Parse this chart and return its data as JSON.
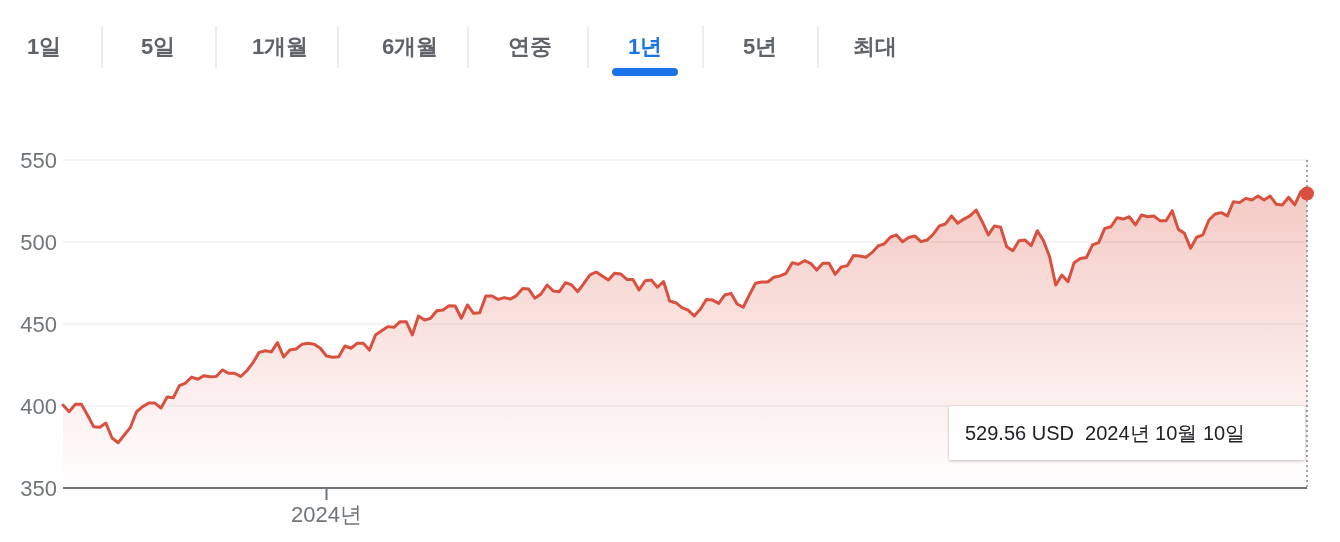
{
  "chart_data": {
    "type": "area",
    "color": "#d9503f",
    "grid": "y",
    "marker": "none",
    "ylim": [
      350,
      550
    ],
    "yticks": [
      350,
      400,
      450,
      500,
      550
    ],
    "annotations": [
      "1일",
      "5일",
      "1개월",
      "6개월",
      "연중",
      "1년",
      "5년",
      "최대",
      "529.56 USD  2024년 10월 10일"
    ],
    "categories": [
      null,
      null,
      null,
      null,
      null,
      null,
      null,
      null,
      null,
      null,
      null,
      null,
      null,
      null,
      null,
      null,
      null,
      null,
      null,
      null,
      null,
      null,
      null,
      null,
      null,
      null,
      null,
      null,
      null,
      null,
      null,
      null,
      null,
      null,
      null,
      null,
      null,
      null,
      null,
      null,
      null,
      null,
      null,
      "2024년",
      null,
      null,
      null,
      null,
      null,
      null,
      null,
      null,
      null,
      null,
      null,
      null,
      null,
      null,
      null,
      null,
      null,
      null,
      null,
      null,
      null,
      null,
      null,
      null,
      null,
      null,
      null,
      null,
      null,
      null,
      null,
      null,
      null,
      null,
      null,
      null,
      null,
      null,
      null,
      null,
      null,
      null,
      null,
      null,
      null,
      null,
      null,
      null,
      null,
      null,
      null,
      null,
      null,
      null,
      null,
      null,
      null,
      null,
      null,
      null,
      null,
      null,
      null,
      null,
      null,
      null,
      null,
      null,
      null,
      null,
      null,
      null,
      null,
      null,
      null,
      null,
      null,
      null,
      null,
      null,
      null,
      null,
      null,
      null,
      null,
      null,
      null,
      null,
      null,
      null,
      null,
      null,
      null,
      null,
      null,
      null,
      null,
      null,
      null,
      null,
      null,
      null,
      null,
      null,
      null,
      null,
      null,
      null,
      null,
      null,
      null,
      null,
      null,
      null,
      null,
      null,
      null,
      null,
      null,
      null,
      null,
      null,
      null,
      null,
      null,
      null,
      null,
      null,
      null,
      null,
      null,
      null,
      null,
      null,
      null,
      null,
      null,
      null,
      null,
      null,
      null,
      null,
      null,
      null,
      null,
      null,
      null,
      null,
      null,
      null,
      null,
      null,
      null,
      null,
      null,
      null,
      null,
      null,
      null,
      null
    ],
    "values": [
      400.6,
      396.5,
      401,
      401,
      394.5,
      387.4,
      387,
      389.6,
      380.5,
      377.6,
      382.3,
      387,
      396.5,
      399.6,
      401.8,
      401.8,
      398.8,
      405.5,
      405,
      412.4,
      414,
      417.6,
      416.3,
      418.5,
      417.9,
      418,
      422,
      420,
      420,
      418,
      421.5,
      426.4,
      432.7,
      433.7,
      433,
      438.6,
      429.9,
      434.1,
      434.8,
      437.6,
      438.2,
      437.6,
      435.2,
      430.5,
      429.7,
      430.1,
      436.6,
      435.2,
      438.2,
      438.2,
      434.1,
      443.3,
      445.9,
      448.4,
      448,
      451.4,
      451.4,
      443.3,
      454.9,
      452.4,
      453.5,
      458.1,
      458.5,
      461.2,
      461,
      453.5,
      461.6,
      456.5,
      456.9,
      467.1,
      467.1,
      465,
      466.1,
      465.2,
      467.3,
      471.7,
      471.3,
      465.7,
      468.3,
      473.8,
      470.1,
      469.7,
      475.2,
      473.8,
      469.7,
      474.8,
      479.9,
      481.7,
      479.3,
      476.8,
      480.9,
      480.5,
      477.2,
      477.2,
      470.7,
      476.4,
      476.8,
      472.4,
      475.9,
      464,
      463,
      460,
      458.5,
      454.9,
      459,
      465,
      464.6,
      462.6,
      467.7,
      468.7,
      462.2,
      460.2,
      467.7,
      474.8,
      475.6,
      475.6,
      478.5,
      479.3,
      480.9,
      487.4,
      486.4,
      488.6,
      487,
      482.9,
      487,
      487,
      480.3,
      484.8,
      485.6,
      491.7,
      491.5,
      490.7,
      493.5,
      497.6,
      498.8,
      502.9,
      504.3,
      500.2,
      502.7,
      503.7,
      500.2,
      501.2,
      504.7,
      509.8,
      511,
      515.9,
      511.4,
      514,
      515.9,
      519.5,
      512.4,
      504.3,
      509.8,
      509,
      497.1,
      494.7,
      500.8,
      501.2,
      497.7,
      506.9,
      500.8,
      491,
      473.8,
      479.9,
      475.8,
      487.4,
      490,
      490.5,
      498.2,
      499.6,
      508.3,
      509.3,
      514.8,
      514,
      515.4,
      510.4,
      516.5,
      515.4,
      515.9,
      513,
      513,
      519.1,
      507.7,
      505.3,
      496.2,
      502.9,
      504.3,
      513.4,
      517.1,
      517.9,
      515.9,
      524.6,
      524,
      526.6,
      525.6,
      528,
      525.6,
      528,
      523,
      522.6,
      527.3,
      522.6,
      530.7,
      529.56
    ]
  }
}
